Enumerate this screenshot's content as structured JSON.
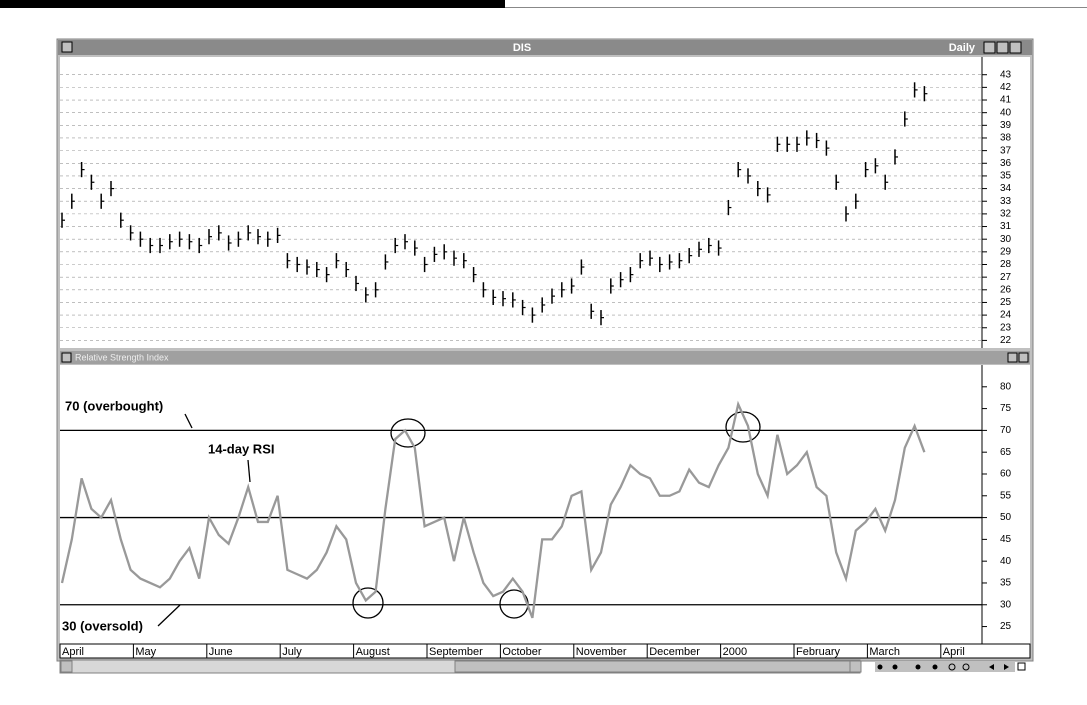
{
  "chart_data": [
    {
      "type": "ohlc",
      "title": "DIS",
      "period_label": "Daily",
      "color": "#000000",
      "high": [
        32.1,
        33.6,
        36.1,
        35.1,
        33.6,
        34.6,
        32.1,
        31.1,
        30.6,
        30.1,
        30.1,
        30.4,
        30.6,
        30.4,
        30.1,
        30.8,
        31.1,
        30.3,
        30.6,
        31.1,
        30.8,
        30.6,
        30.9,
        28.9,
        28.6,
        28.4,
        28.2,
        27.8,
        28.9,
        28.2,
        27.1,
        26.2,
        26.6,
        28.8,
        30.1,
        30.4,
        29.9,
        28.6,
        29.4,
        29.6,
        29.1,
        28.9,
        27.8,
        26.6,
        26,
        25.9,
        25.8,
        25.2,
        24.6,
        25.4,
        26.1,
        26.6,
        26.9,
        28.4,
        24.9,
        24.4,
        26.9,
        27.4,
        27.8,
        28.9,
        29.1,
        28.6,
        28.8,
        28.9,
        29.3,
        29.8,
        30.1,
        29.9,
        33.1,
        36.1,
        35.6,
        34.6,
        34.1,
        38.1,
        38.1,
        38.1,
        38.6,
        38.4,
        37.8,
        35.1,
        32.6,
        33.6,
        36.1,
        36.4,
        35.1,
        37.1,
        40.1,
        42.4,
        42.1
      ],
      "low": [
        30.9,
        32.4,
        34.9,
        33.9,
        32.4,
        33.4,
        30.9,
        29.9,
        29.4,
        28.9,
        28.9,
        29.2,
        29.4,
        29.2,
        28.9,
        29.6,
        29.9,
        29.1,
        29.4,
        29.9,
        29.6,
        29.4,
        29.7,
        27.7,
        27.4,
        27.2,
        27,
        26.6,
        27.7,
        27,
        25.9,
        25,
        25.4,
        27.6,
        28.9,
        29.2,
        28.7,
        27.4,
        28.2,
        28.4,
        27.9,
        27.7,
        26.6,
        25.4,
        24.8,
        24.7,
        24.6,
        24,
        23.4,
        24.2,
        24.9,
        25.4,
        25.7,
        27.2,
        23.7,
        23.2,
        25.7,
        26.2,
        26.6,
        27.7,
        27.9,
        27.4,
        27.6,
        27.7,
        28.1,
        28.6,
        28.9,
        28.7,
        31.9,
        34.9,
        34.4,
        33.4,
        32.9,
        36.9,
        36.9,
        36.9,
        37.4,
        37.2,
        36.6,
        33.9,
        31.4,
        32.4,
        34.9,
        35.2,
        33.9,
        35.9,
        38.9,
        41.2,
        40.9
      ],
      "close": [
        31.5,
        33,
        35.5,
        34.5,
        33,
        34,
        31.5,
        30.5,
        30,
        29.5,
        29.5,
        29.8,
        30,
        29.8,
        29.5,
        30.2,
        30.5,
        29.7,
        30,
        30.5,
        30.2,
        30,
        30.3,
        28.3,
        28,
        27.8,
        27.6,
        27.2,
        28.3,
        27.6,
        26.5,
        25.6,
        26,
        28.2,
        29.5,
        29.8,
        29.3,
        28,
        28.8,
        29,
        28.5,
        28.3,
        27.2,
        26,
        25.4,
        25.3,
        25.2,
        24.6,
        24,
        24.8,
        25.5,
        26,
        26.3,
        27.8,
        24.3,
        23.8,
        26.3,
        26.8,
        27.2,
        28.3,
        28.5,
        28,
        28.2,
        28.3,
        28.7,
        29.2,
        29.5,
        29.3,
        32.5,
        35.5,
        35,
        34,
        33.5,
        37.5,
        37.5,
        37.5,
        38,
        37.8,
        37.2,
        34.5,
        32,
        33,
        35.5,
        35.8,
        34.5,
        36.5,
        39.5,
        41.8,
        41.5
      ],
      "ylim": [
        21.4,
        44.4
      ],
      "yticks": [
        22,
        23,
        24,
        25,
        26,
        27,
        28,
        29,
        30,
        31,
        32,
        33,
        34,
        35,
        36,
        37,
        38,
        39,
        40,
        41,
        42,
        43
      ],
      "grid": true
    },
    {
      "type": "line",
      "title": "Relative Strength Index",
      "color": "#999999",
      "values": [
        35,
        45,
        59,
        52,
        50,
        54,
        45,
        38,
        36,
        35,
        34,
        36,
        40,
        43,
        36,
        50,
        46,
        44,
        50,
        57,
        49,
        49,
        55,
        38,
        37,
        36,
        38,
        42,
        48,
        45,
        35,
        31,
        33,
        52,
        68,
        70,
        66,
        48,
        49,
        50,
        40,
        50,
        42,
        35,
        32,
        33,
        36,
        33,
        27,
        45,
        45,
        48,
        55,
        56,
        38,
        42,
        53,
        57,
        62,
        60,
        59,
        55,
        55,
        56,
        61,
        58,
        57,
        62,
        66,
        76,
        71,
        60,
        55,
        69,
        60,
        62,
        65,
        57,
        55,
        42,
        36,
        47,
        49,
        52,
        47,
        54,
        66,
        71,
        65
      ],
      "ylim": [
        21,
        85
      ],
      "yticks": [
        25,
        30,
        35,
        40,
        45,
        50,
        55,
        60,
        65,
        70,
        75,
        80
      ],
      "reference_lines": [
        70,
        50,
        30
      ],
      "annotations": [
        "70 (overbought)",
        "14-day RSI",
        "30 (oversold)"
      ],
      "x_labels": [
        "April",
        "May",
        "June",
        "July",
        "August",
        "September",
        "October",
        "November",
        "December",
        "2000",
        "February",
        "March",
        "April"
      ]
    }
  ]
}
